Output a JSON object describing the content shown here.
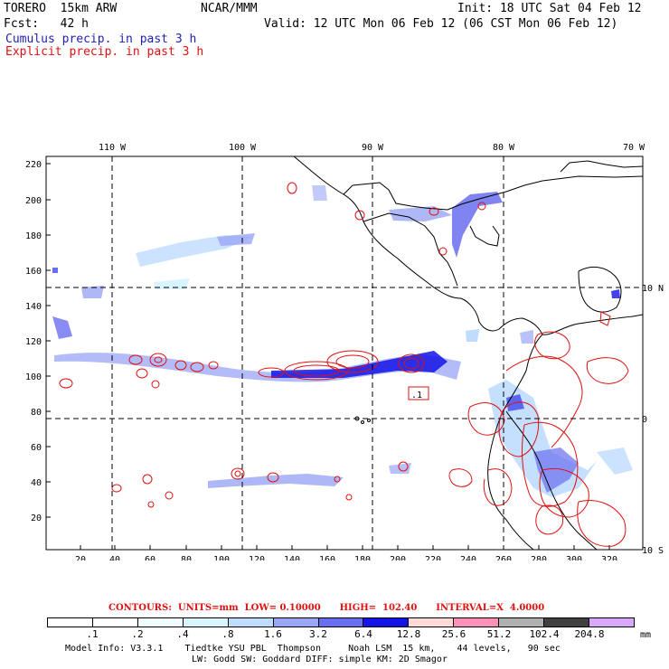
{
  "header": {
    "model_name": "TORERO  15km ARW",
    "org": "NCAR/MMM",
    "init": "Init: 18 UTC Sat 04 Feb 12",
    "fcst": "Fcst:   42 h",
    "valid": "Valid: 12 UTC Mon 06 Feb 12 (06 CST Mon 06 Feb 12)",
    "cumulus_label": "Cumulus precip. in past 3 h",
    "explicit_label": "Explicit precip. in past 3 h"
  },
  "map": {
    "top_lon_labels": [
      "110 W",
      "100 W",
      "90 W",
      "80 W",
      "70 W"
    ],
    "right_lat_labels": [
      "10 N",
      "0",
      "10 S"
    ],
    "left_axis_labels": [
      "20",
      "40",
      "60",
      "80",
      "100",
      "120",
      "140",
      "160",
      "180",
      "200",
      "220"
    ],
    "bottom_axis_labels": [
      "20",
      "40",
      "60",
      "80",
      "100",
      "120",
      "140",
      "160",
      "180",
      "200",
      "220",
      "240",
      "260",
      "280",
      "300",
      "320"
    ],
    "inline_label": ".1"
  },
  "footer": {
    "contours_label": "CONTOURS:",
    "units": "UNITS=mm",
    "low": "LOW= 0.10000",
    "high": "HIGH=  102.40",
    "interval": "INTERVAL=X  4.0000",
    "colorbar_labels": [
      ".1",
      ".2",
      ".4",
      ".8",
      "1.6",
      "3.2",
      "6.4",
      "12.8",
      "25.6",
      "51.2",
      "102.4",
      "204.8"
    ],
    "colorbar_unit": "mm",
    "colorbar_colors": [
      "#ffffff",
      "#ffffff",
      "#f0fcff",
      "#d8f4ff",
      "#bfdcff",
      "#9aa6f5",
      "#6a6ef0",
      "#1414e6",
      "#ffd8d8",
      "#ff90b8",
      "#b0b0b0",
      "#404040",
      "#d8a8ff"
    ],
    "model_info_1": "Model Info: V3.3.1    Tiedtke YSU PBL  Thompson     Noah LSM  15 km,    44 levels,   90 sec",
    "model_info_2": "LW: Godd SW: Goddard DIFF: simple KM: 2D Smagor"
  }
}
